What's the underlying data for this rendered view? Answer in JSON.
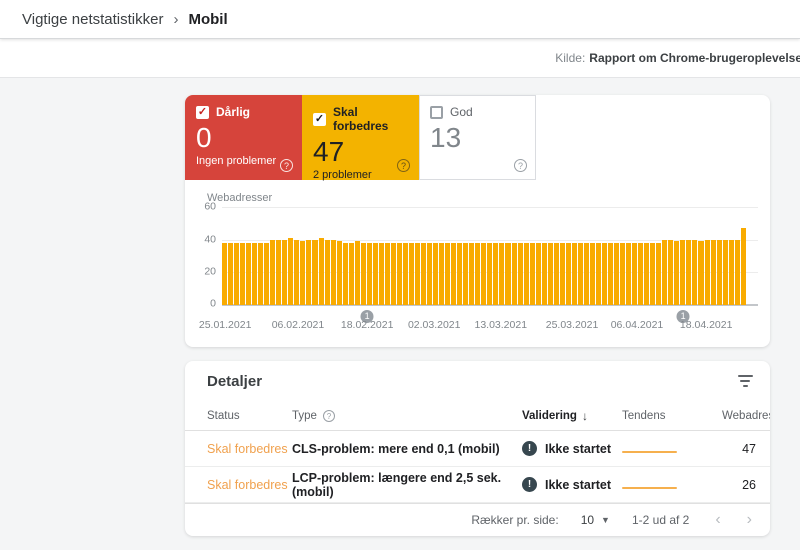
{
  "header": {
    "breadcrumb": [
      {
        "label": "Vigtige netstatistikker"
      },
      {
        "label": "Mobil"
      }
    ],
    "source_label": "Kilde:",
    "source_value": "Rapport om Chrome-brugeroplevelse"
  },
  "status_cards": [
    {
      "label": "Dårlig",
      "value": "0",
      "sub": "Ingen problemer",
      "checked": true,
      "variant": "bad"
    },
    {
      "label": "Skal forbedres",
      "value": "47",
      "sub": "2 problemer",
      "checked": true,
      "variant": "needs-improvement"
    },
    {
      "label": "God",
      "value": "13",
      "sub": "",
      "checked": false,
      "variant": "good"
    }
  ],
  "chart_data": {
    "type": "bar",
    "title": "Webadresser",
    "xlabel": "",
    "ylabel": "Webadresser",
    "ylim": [
      0,
      60
    ],
    "yticks": [
      60,
      40,
      20,
      0
    ],
    "grid": true,
    "x_tick_labels": [
      "25.01.2021",
      "06.02.2021",
      "18.02.2021",
      "02.03.2021",
      "13.03.2021",
      "25.03.2021",
      "06.04.2021",
      "18.04.2021"
    ],
    "values": [
      38,
      38,
      38,
      38,
      38,
      38,
      38,
      38,
      40,
      40,
      40,
      41,
      40,
      39,
      40,
      40,
      41,
      40,
      40,
      39,
      38,
      38,
      39,
      38,
      38,
      38,
      38,
      38,
      38,
      38,
      38,
      38,
      38,
      38,
      38,
      38,
      38,
      38,
      38,
      38,
      38,
      38,
      38,
      38,
      38,
      38,
      38,
      38,
      38,
      38,
      38,
      38,
      38,
      38,
      38,
      38,
      38,
      38,
      38,
      38,
      38,
      38,
      38,
      38,
      38,
      38,
      38,
      38,
      38,
      38,
      38,
      38,
      38,
      40,
      40,
      39,
      40,
      40,
      40,
      39,
      40,
      40,
      40,
      40,
      40,
      40,
      47
    ],
    "markers": [
      {
        "label": "1",
        "position": 0.277
      },
      {
        "label": "1",
        "position": 0.88
      }
    ]
  },
  "details": {
    "title": "Detaljer",
    "columns": {
      "status": "Status",
      "type": "Type",
      "validation": "Validering",
      "trend": "Tendens",
      "urls": "Webadresser"
    },
    "sort_arrow": "↓",
    "rows": [
      {
        "status": "Skal forbedres",
        "type": "CLS-problem: mere end 0,1 (mobil)",
        "validation": "Ikke startet",
        "urls": "47"
      },
      {
        "status": "Skal forbedres",
        "type": "LCP-problem: længere end 2,5 sek. (mobil)",
        "validation": "Ikke startet",
        "urls": "26"
      }
    ],
    "pagination": {
      "rows_per_page_label": "Rækker pr. side:",
      "rows_per_page_value": "10",
      "range_text": "1-2 ud af 2"
    }
  },
  "colors": {
    "bad": "#d6443b",
    "needs_improvement": "#f3b300",
    "bar": "#f9ab00",
    "status_text": "#f0a14e",
    "trend_line": "#f6b04e",
    "validation_icon": "#37474f",
    "marker": "#9aa0a6"
  }
}
